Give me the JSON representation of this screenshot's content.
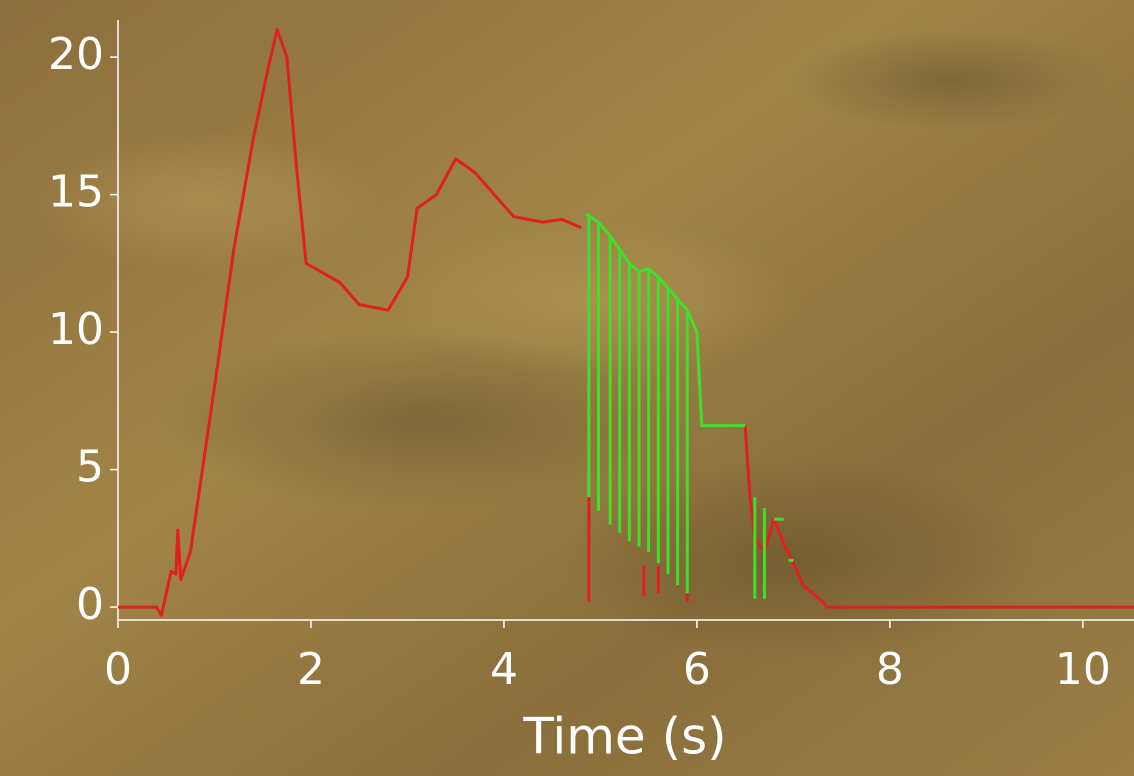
{
  "chart_data": {
    "type": "line",
    "x_label": "Time (s)",
    "xlim": [
      0,
      10.53
    ],
    "ylim": [
      -0.47,
      21.35
    ],
    "xticks": [
      0,
      2,
      4,
      6,
      8,
      10
    ],
    "yticks": [
      0,
      5,
      10,
      15,
      20
    ],
    "series": [
      {
        "color": "#e0201c",
        "x": [
          0,
          0.4,
          0.45,
          0.5,
          0.55,
          0.6,
          0.62,
          0.65,
          0.7,
          0.75,
          1.0,
          1.2,
          1.4,
          1.55,
          1.65,
          1.75,
          1.85,
          1.95,
          2.1,
          2.3,
          2.5,
          2.8,
          3.0,
          3.1,
          3.3,
          3.5,
          3.7,
          3.9,
          4.1,
          4.4,
          4.6,
          4.8,
          null,
          4.88,
          4.88,
          null,
          5.45,
          5.45,
          null,
          5.6,
          5.6,
          null,
          5.9,
          5.9,
          null,
          6.5,
          6.55,
          6.6,
          6.7,
          6.8,
          6.9,
          7.0,
          7.1,
          7.2,
          7.3,
          7.35,
          10.53
        ],
        "values": [
          0,
          0,
          -0.3,
          0.5,
          1.3,
          1.2,
          2.8,
          1.0,
          1.5,
          2,
          8,
          13,
          17,
          19.5,
          21,
          20,
          16,
          12.5,
          12.2,
          11.8,
          11,
          10.8,
          12,
          14.5,
          15,
          16.3,
          15.8,
          15,
          14.2,
          14,
          14.1,
          13.8,
          null,
          4,
          0.2,
          null,
          1.5,
          0.4,
          null,
          1.5,
          0.5,
          null,
          0.5,
          0.2,
          null,
          6.6,
          4,
          2.5,
          2,
          3.2,
          2.3,
          1.6,
          0.8,
          0.5,
          0.2,
          0,
          0
        ]
      },
      {
        "color": "#3ee02a",
        "x": [
          4.85,
          4.98,
          5.1,
          5.2,
          5.3,
          5.4,
          5.5,
          5.6,
          5.7,
          5.8,
          5.9,
          6.0,
          6.05,
          6.5,
          null,
          4.88,
          4.88,
          null,
          4.98,
          4.98,
          null,
          5.1,
          5.1,
          null,
          5.2,
          5.2,
          null,
          5.3,
          5.3,
          null,
          5.4,
          5.4,
          null,
          5.5,
          5.5,
          null,
          5.6,
          5.6,
          null,
          5.7,
          5.7,
          null,
          5.8,
          5.8,
          null,
          5.9,
          5.9,
          null,
          6.6,
          6.6,
          null,
          6.7,
          6.7,
          null,
          6.8,
          6.9,
          null,
          6.95,
          7.0
        ],
        "values": [
          14.3,
          14,
          13.5,
          13,
          12.5,
          12.2,
          12.3,
          12,
          11.6,
          11.2,
          10.8,
          10,
          6.6,
          6.6,
          null,
          14.3,
          4,
          null,
          14,
          3.5,
          null,
          13.5,
          3,
          null,
          13,
          2.7,
          null,
          12.5,
          2.4,
          null,
          12.2,
          2.2,
          null,
          12.3,
          2,
          null,
          12,
          1.6,
          null,
          11.6,
          1.2,
          null,
          11.2,
          0.8,
          null,
          10.8,
          0.5,
          null,
          4,
          0.3,
          null,
          3.6,
          0.3,
          null,
          3.2,
          3.2,
          null,
          1.7,
          1.7
        ]
      }
    ]
  }
}
